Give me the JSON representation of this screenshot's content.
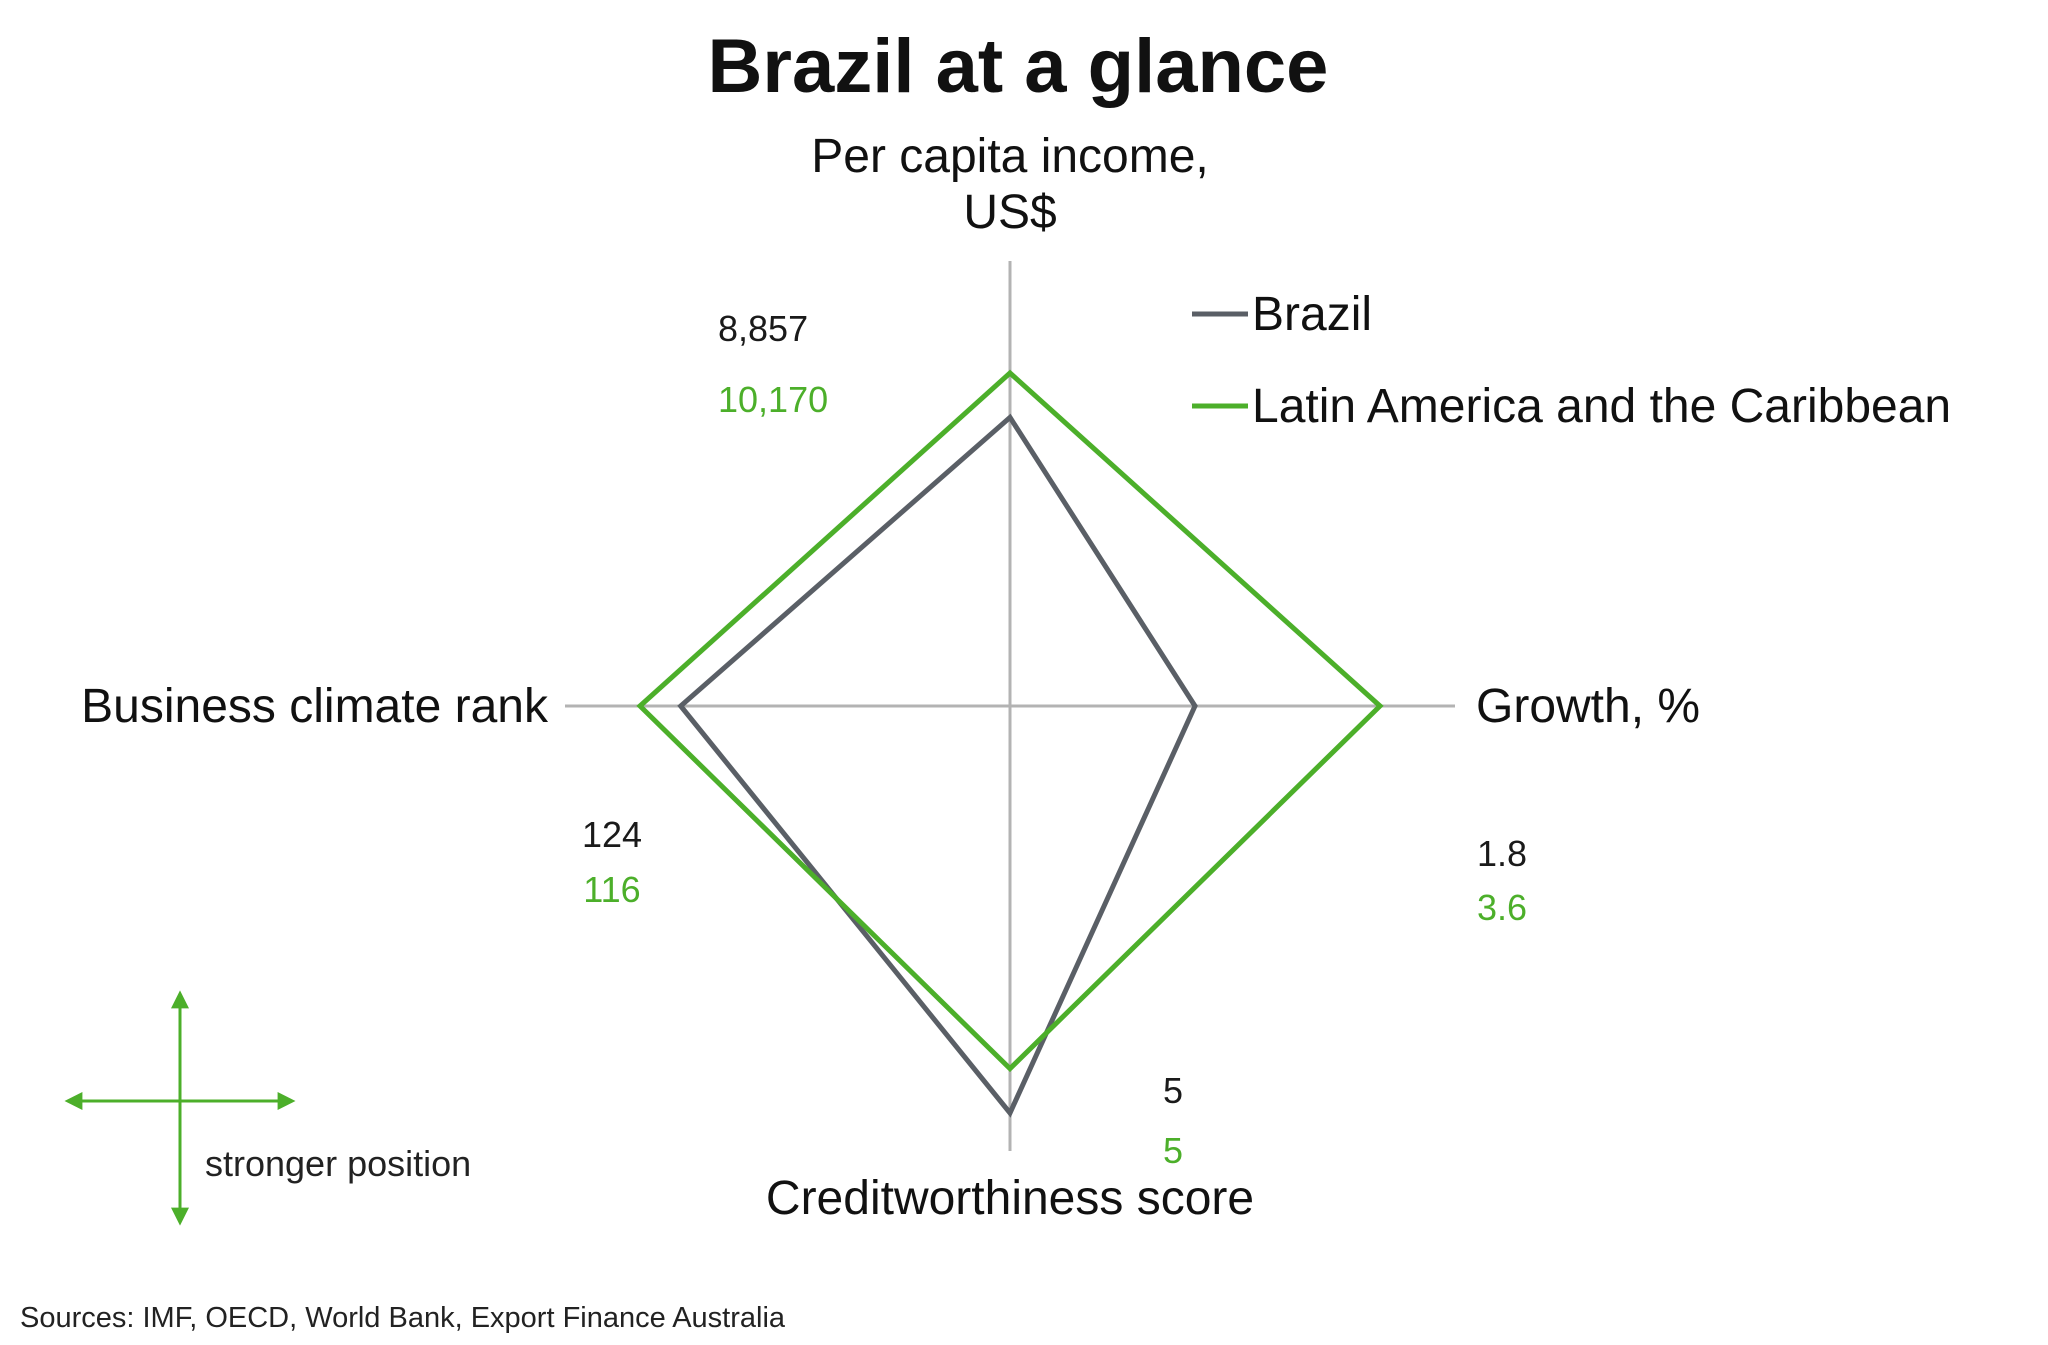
{
  "chart_data": {
    "type": "radar",
    "title": "Brazil at a glance",
    "axes": [
      {
        "key": "income",
        "label_lines": [
          "Per capita income,",
          "US$"
        ],
        "direction": "up"
      },
      {
        "key": "growth",
        "label_lines": [
          "Growth, %"
        ],
        "direction": "right"
      },
      {
        "key": "credit",
        "label_lines": [
          "Creditworthiness score"
        ],
        "direction": "down"
      },
      {
        "key": "business",
        "label_lines": [
          "Business climate rank"
        ],
        "direction": "left"
      }
    ],
    "series": [
      {
        "name": "Brazil",
        "color": "#5a5f66",
        "values": {
          "income": 8857,
          "growth": 1.8,
          "credit": 5,
          "business": 124
        },
        "labels": {
          "income": "8,857",
          "growth": "1.8",
          "credit": "5",
          "business": "124"
        }
      },
      {
        "name": "Latin America and the Caribbean",
        "color": "#4caf2a",
        "values": {
          "income": 10170,
          "growth": 3.6,
          "credit": 5,
          "business": 116
        },
        "labels": {
          "income": "10,170",
          "growth": "3.6",
          "credit": "5",
          "business": "116"
        }
      }
    ],
    "relative_position": {
      "income": {
        "Brazil": 0.78,
        "Latin America and the Caribbean": 0.9
      },
      "growth": {
        "Brazil": 0.5,
        "Latin America and the Caribbean": 1.0
      },
      "credit": {
        "Brazil": 1.1,
        "Latin America and the Caribbean": 0.98
      },
      "business": {
        "Brazil": 0.89,
        "Latin America and the Caribbean": 1.0
      }
    },
    "legend_position": "top-right",
    "note": "stronger position",
    "source": "Sources: IMF, OECD, World Bank, Export Finance Australia"
  }
}
